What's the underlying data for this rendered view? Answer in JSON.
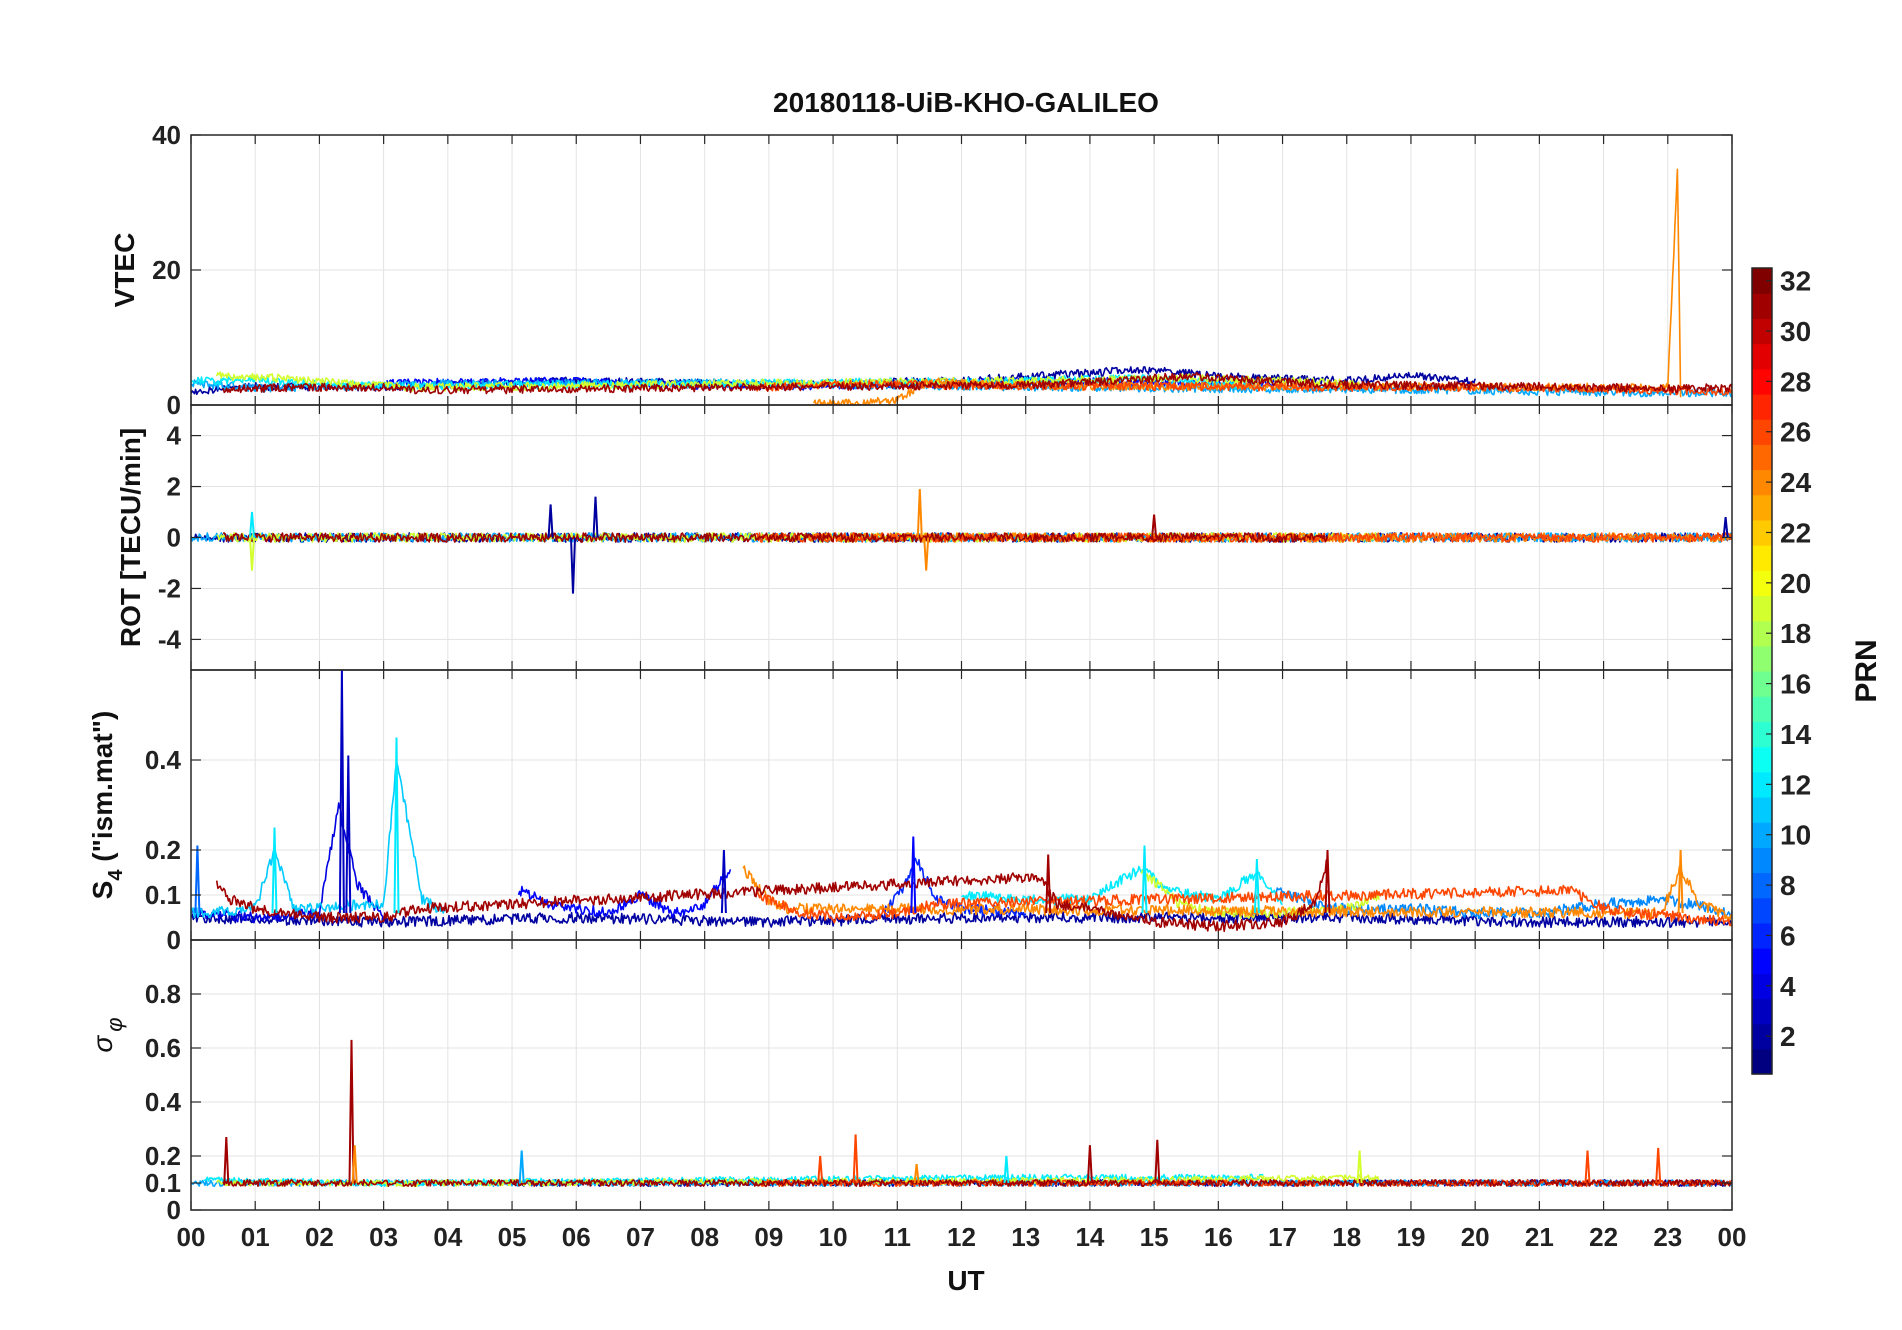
{
  "chart_data": {
    "type": "line",
    "title": "20180118-UiB-KHO-GALILEO",
    "xlabel": "UT",
    "xlim": [
      0,
      24
    ],
    "x_ticks": [
      "00",
      "01",
      "02",
      "03",
      "04",
      "05",
      "06",
      "07",
      "08",
      "09",
      "10",
      "11",
      "12",
      "13",
      "14",
      "15",
      "16",
      "17",
      "18",
      "19",
      "20",
      "21",
      "22",
      "23",
      "00"
    ],
    "grid": true,
    "panels": [
      {
        "id": "vtec",
        "ylabel": "VTEC",
        "ylim": [
          0,
          40
        ],
        "yticks": [
          0,
          20,
          40
        ],
        "ytick_labels": [
          "0",
          "20",
          "40"
        ],
        "baseline": 3,
        "noise": 0.6,
        "series": [
          {
            "prn": 2,
            "x": [
              0.0,
              0.9,
              3.0,
              6.0,
              9.0,
              12.0,
              14.0,
              15.0,
              16.0,
              18.0,
              19.0,
              20.0
            ],
            "y": [
              2.0,
              2.8,
              2.6,
              3.6,
              3.0,
              3.6,
              4.8,
              5.2,
              4.2,
              3.6,
              4.3,
              3.4
            ]
          },
          {
            "prn": 5,
            "x": [
              3.0,
              6.0,
              7.0,
              9.5,
              11.5,
              13.0,
              16.0,
              17.0
            ],
            "y": [
              3.2,
              3.6,
              3.0,
              2.8,
              3.1,
              3.6,
              3.3,
              3.0
            ]
          },
          {
            "prn": 10,
            "x": [
              0.0,
              1.0,
              4.0,
              8.0,
              12.0,
              16.0,
              19.0,
              21.0,
              23.0,
              24.0
            ],
            "y": [
              3.2,
              2.5,
              3.1,
              3.3,
              2.8,
              2.4,
              2.3,
              2.0,
              1.8,
              1.8
            ]
          },
          {
            "prn": 12,
            "x": [
              0.0,
              1.0,
              1.5,
              3.0,
              12.5,
              14.0,
              15.0,
              16.0,
              16.7
            ],
            "y": [
              3.5,
              3.8,
              3.2,
              2.8,
              3.5,
              3.8,
              4.0,
              3.1,
              2.7
            ]
          },
          {
            "prn": 19,
            "x": [
              0.4,
              1.3,
              2.5,
              3.5,
              14.6,
              15.5,
              17.8,
              18.5
            ],
            "y": [
              4.3,
              4.0,
              3.2,
              2.6,
              3.8,
              4.0,
              3.3,
              2.6
            ]
          },
          {
            "prn": 24,
            "x": [
              9.7,
              10.5,
              11.0,
              11.5,
              12.5,
              14.0,
              23.0,
              23.15,
              23.2
            ],
            "y": [
              0.2,
              0.3,
              0.8,
              3.6,
              3.0,
              2.8,
              2.6,
              34.5,
              0.8
            ]
          },
          {
            "prn": 26,
            "x": [
              8.8,
              10.0,
              11.2,
              11.6,
              21.5,
              22.5,
              24.0
            ],
            "y": [
              2.6,
              3.0,
              3.2,
              2.9,
              2.5,
              2.2,
              2.0
            ]
          },
          {
            "prn": 31,
            "x": [
              0.5,
              1.5,
              3.0,
              3.6,
              13.2,
              14.5,
              15.5,
              16.5,
              17.7,
              21.5,
              23.0,
              24.0
            ],
            "y": [
              2.3,
              2.6,
              2.6,
              2.2,
              3.0,
              3.6,
              4.3,
              3.7,
              3.0,
              2.7,
              2.4,
              2.6
            ]
          }
        ]
      },
      {
        "id": "rot",
        "ylabel": "ROT [TECU/min]",
        "ylim": [
          -5.2,
          5.2
        ],
        "yticks": [
          -4,
          -2,
          0,
          2,
          4
        ],
        "ytick_labels": [
          "-4",
          "-2",
          "0",
          "2",
          "4"
        ],
        "baseline": 0,
        "noise": 0.18,
        "spikes": [
          {
            "x": 0.95,
            "y": -1.3,
            "prn": 19
          },
          {
            "x": 0.95,
            "y": 1.0,
            "prn": 12
          },
          {
            "x": 5.6,
            "y": 1.3,
            "prn": 2
          },
          {
            "x": 5.95,
            "y": -2.2,
            "prn": 2
          },
          {
            "x": 6.3,
            "y": 1.6,
            "prn": 2
          },
          {
            "x": 11.35,
            "y": 1.9,
            "prn": 24
          },
          {
            "x": 11.45,
            "y": -1.3,
            "prn": 24
          },
          {
            "x": 15.0,
            "y": 0.9,
            "prn": 31
          },
          {
            "x": 23.9,
            "y": 0.8,
            "prn": 2
          }
        ],
        "series": [
          {
            "prn": 2,
            "x": [
              0.0,
              4.0,
              6.0,
              8.5,
              14.0,
              16.0,
              19.0,
              24.0
            ],
            "y": [
              0,
              0,
              0,
              0,
              0,
              0,
              0,
              0
            ]
          },
          {
            "prn": 10,
            "x": [
              0.0,
              6.0,
              12.0,
              16.0,
              21.0,
              24.0
            ],
            "y": [
              0,
              0,
              0,
              0,
              0,
              0
            ]
          },
          {
            "prn": 19,
            "x": [
              0.4,
              3.6,
              14.6,
              18.5
            ],
            "y": [
              0,
              0,
              0,
              0
            ]
          },
          {
            "prn": 24,
            "x": [
              9.7,
              12.0,
              23.0,
              24.0
            ],
            "y": [
              0,
              0,
              0,
              0
            ]
          },
          {
            "prn": 26,
            "x": [
              8.8,
              11.6,
              21.5,
              24.0
            ],
            "y": [
              0,
              0,
              0,
              0
            ]
          },
          {
            "prn": 31,
            "x": [
              0.5,
              3.6,
              13.2,
              17.7
            ],
            "y": [
              0,
              0,
              0,
              0
            ]
          }
        ]
      },
      {
        "id": "s4",
        "ylabel": "S4 (\"ism.mat\")",
        "ylim": [
          0,
          0.6
        ],
        "yticks": [
          0,
          0.1,
          0.2,
          0.4
        ],
        "ytick_labels": [
          "0",
          "0.1",
          "0.2",
          "0.4"
        ],
        "noise": 0.012,
        "spikes": [
          {
            "x": 2.35,
            "y": 0.6,
            "prn": 3
          },
          {
            "x": 2.45,
            "y": 0.41,
            "prn": 3
          },
          {
            "x": 3.2,
            "y": 0.45,
            "prn": 12
          },
          {
            "x": 1.3,
            "y": 0.25,
            "prn": 12
          },
          {
            "x": 0.1,
            "y": 0.21,
            "prn": 8
          },
          {
            "x": 8.3,
            "y": 0.2,
            "prn": 3
          },
          {
            "x": 11.25,
            "y": 0.23,
            "prn": 5
          },
          {
            "x": 13.35,
            "y": 0.19,
            "prn": 31
          },
          {
            "x": 14.85,
            "y": 0.21,
            "prn": 12
          },
          {
            "x": 16.6,
            "y": 0.18,
            "prn": 12
          },
          {
            "x": 17.7,
            "y": 0.2,
            "prn": 31
          },
          {
            "x": 23.2,
            "y": 0.2,
            "prn": 24
          }
        ],
        "series": [
          {
            "prn": 2,
            "x": [
              0.0,
              3.0,
              6.0,
              9.0,
              12.0,
              15.0,
              18.0,
              21.0,
              24.0
            ],
            "y": [
              0.05,
              0.04,
              0.05,
              0.04,
              0.05,
              0.05,
              0.05,
              0.04,
              0.04
            ]
          },
          {
            "prn": 4,
            "x": [
              0.0,
              1.0,
              2.0,
              2.3,
              2.6,
              3.0
            ],
            "y": [
              0.06,
              0.05,
              0.06,
              0.3,
              0.12,
              0.05
            ]
          },
          {
            "prn": 5,
            "x": [
              5.1,
              5.6,
              6.5,
              7.0,
              7.5,
              8.0,
              8.4
            ],
            "y": [
              0.11,
              0.08,
              0.06,
              0.1,
              0.06,
              0.08,
              0.16
            ]
          },
          {
            "prn": 6,
            "x": [
              10.8,
              11.1,
              11.3,
              11.6,
              12.0,
              13.0
            ],
            "y": [
              0.06,
              0.12,
              0.18,
              0.09,
              0.07,
              0.06
            ]
          },
          {
            "prn": 9,
            "x": [
              16.9,
              17.3,
              17.7,
              19.0,
              20.0,
              21.0,
              22.0,
              23.0,
              24.0
            ],
            "y": [
              0.11,
              0.09,
              0.07,
              0.07,
              0.06,
              0.06,
              0.08,
              0.09,
              0.06
            ]
          },
          {
            "prn": 11,
            "x": [
              0.0,
              0.3,
              1.0,
              1.3,
              1.6,
              3.0,
              3.2,
              3.6,
              4.0
            ],
            "y": [
              0.06,
              0.06,
              0.07,
              0.2,
              0.07,
              0.08,
              0.4,
              0.09,
              0.06
            ]
          },
          {
            "prn": 12,
            "x": [
              12.0,
              13.0,
              14.0,
              14.8,
              15.2,
              16.0,
              16.6,
              17.0
            ],
            "y": [
              0.1,
              0.09,
              0.09,
              0.16,
              0.11,
              0.09,
              0.15,
              0.08
            ]
          },
          {
            "prn": 19,
            "x": [
              14.8,
              15.0,
              15.4,
              16.0,
              17.0,
              18.0,
              18.5
            ],
            "y": [
              0.15,
              0.13,
              0.08,
              0.06,
              0.06,
              0.07,
              0.1
            ]
          },
          {
            "prn": 24,
            "x": [
              8.6,
              9.0,
              9.3,
              22.9,
              23.2,
              23.5,
              24.0
            ],
            "y": [
              0.16,
              0.09,
              0.07,
              0.06,
              0.16,
              0.08,
              0.05
            ]
          },
          {
            "prn": 26,
            "x": [
              8.8,
              9.5,
              10.0,
              11.0,
              11.6,
              21.5,
              22.0,
              22.5,
              24.0
            ],
            "y": [
              0.1,
              0.06,
              0.05,
              0.06,
              0.08,
              0.11,
              0.07,
              0.06,
              0.04
            ]
          },
          {
            "prn": 31,
            "x": [
              0.4,
              0.6,
              1.0,
              2.0,
              3.0,
              3.6,
              13.2,
              13.5,
              14.0,
              15.0,
              16.0,
              17.0,
              17.5,
              17.7
            ],
            "y": [
              0.13,
              0.09,
              0.07,
              0.05,
              0.05,
              0.07,
              0.14,
              0.08,
              0.07,
              0.04,
              0.03,
              0.04,
              0.08,
              0.18
            ]
          }
        ]
      },
      {
        "id": "sigma",
        "ylabel": "σ φ",
        "ylim": [
          0,
          1
        ],
        "yticks": [
          0,
          0.1,
          0.2,
          0.4,
          0.6,
          0.8
        ],
        "ytick_labels": [
          "0",
          "0.1",
          "0.2",
          "0.4",
          "0.6",
          "0.8"
        ],
        "noise": 0.012,
        "spikes": [
          {
            "x": 0.55,
            "y": 0.27,
            "prn": 31
          },
          {
            "x": 2.5,
            "y": 0.63,
            "prn": 31
          },
          {
            "x": 2.55,
            "y": 0.24,
            "prn": 24
          },
          {
            "x": 5.15,
            "y": 0.22,
            "prn": 10
          },
          {
            "x": 9.8,
            "y": 0.2,
            "prn": 26
          },
          {
            "x": 10.35,
            "y": 0.28,
            "prn": 26
          },
          {
            "x": 11.3,
            "y": 0.17,
            "prn": 24
          },
          {
            "x": 12.7,
            "y": 0.2,
            "prn": 12
          },
          {
            "x": 14.0,
            "y": 0.24,
            "prn": 31
          },
          {
            "x": 15.05,
            "y": 0.26,
            "prn": 31
          },
          {
            "x": 18.2,
            "y": 0.22,
            "prn": 19
          },
          {
            "x": 21.75,
            "y": 0.22,
            "prn": 26
          },
          {
            "x": 22.85,
            "y": 0.23,
            "prn": 26
          }
        ],
        "series": [
          {
            "prn": 2,
            "x": [
              5.0,
              8.5,
              14.0,
              19.0,
              24.0
            ],
            "y": [
              0.1,
              0.1,
              0.1,
              0.1,
              0.1
            ]
          },
          {
            "prn": 10,
            "x": [
              0.0,
              6.0,
              12.0,
              18.0,
              24.0
            ],
            "y": [
              0.1,
              0.1,
              0.1,
              0.1,
              0.1
            ]
          },
          {
            "prn": 12,
            "x": [
              0.2,
              3.0,
              12.5,
              16.7
            ],
            "y": [
              0.11,
              0.1,
              0.12,
              0.12
            ]
          },
          {
            "prn": 19,
            "x": [
              0.4,
              3.6,
              14.6,
              18.5
            ],
            "y": [
              0.1,
              0.1,
              0.11,
              0.12
            ]
          },
          {
            "prn": 26,
            "x": [
              8.8,
              11.6,
              21.5,
              24.0
            ],
            "y": [
              0.1,
              0.1,
              0.1,
              0.1
            ]
          },
          {
            "prn": 31,
            "x": [
              0.5,
              3.6,
              13.2,
              17.7,
              22.0,
              24.0
            ],
            "y": [
              0.1,
              0.1,
              0.1,
              0.1,
              0.1,
              0.1
            ]
          }
        ]
      }
    ],
    "colorbar": {
      "label": "PRN",
      "colormap": "jet",
      "range": [
        1,
        32
      ],
      "ticks": [
        2,
        4,
        6,
        8,
        10,
        12,
        14,
        16,
        18,
        20,
        22,
        24,
        26,
        28,
        30,
        32
      ],
      "tick_labels": [
        "2",
        "4",
        "6",
        "8",
        "10",
        "12",
        "14",
        "16",
        "18",
        "20",
        "22",
        "24",
        "26",
        "28",
        "30",
        "32"
      ],
      "placement": "right"
    }
  }
}
